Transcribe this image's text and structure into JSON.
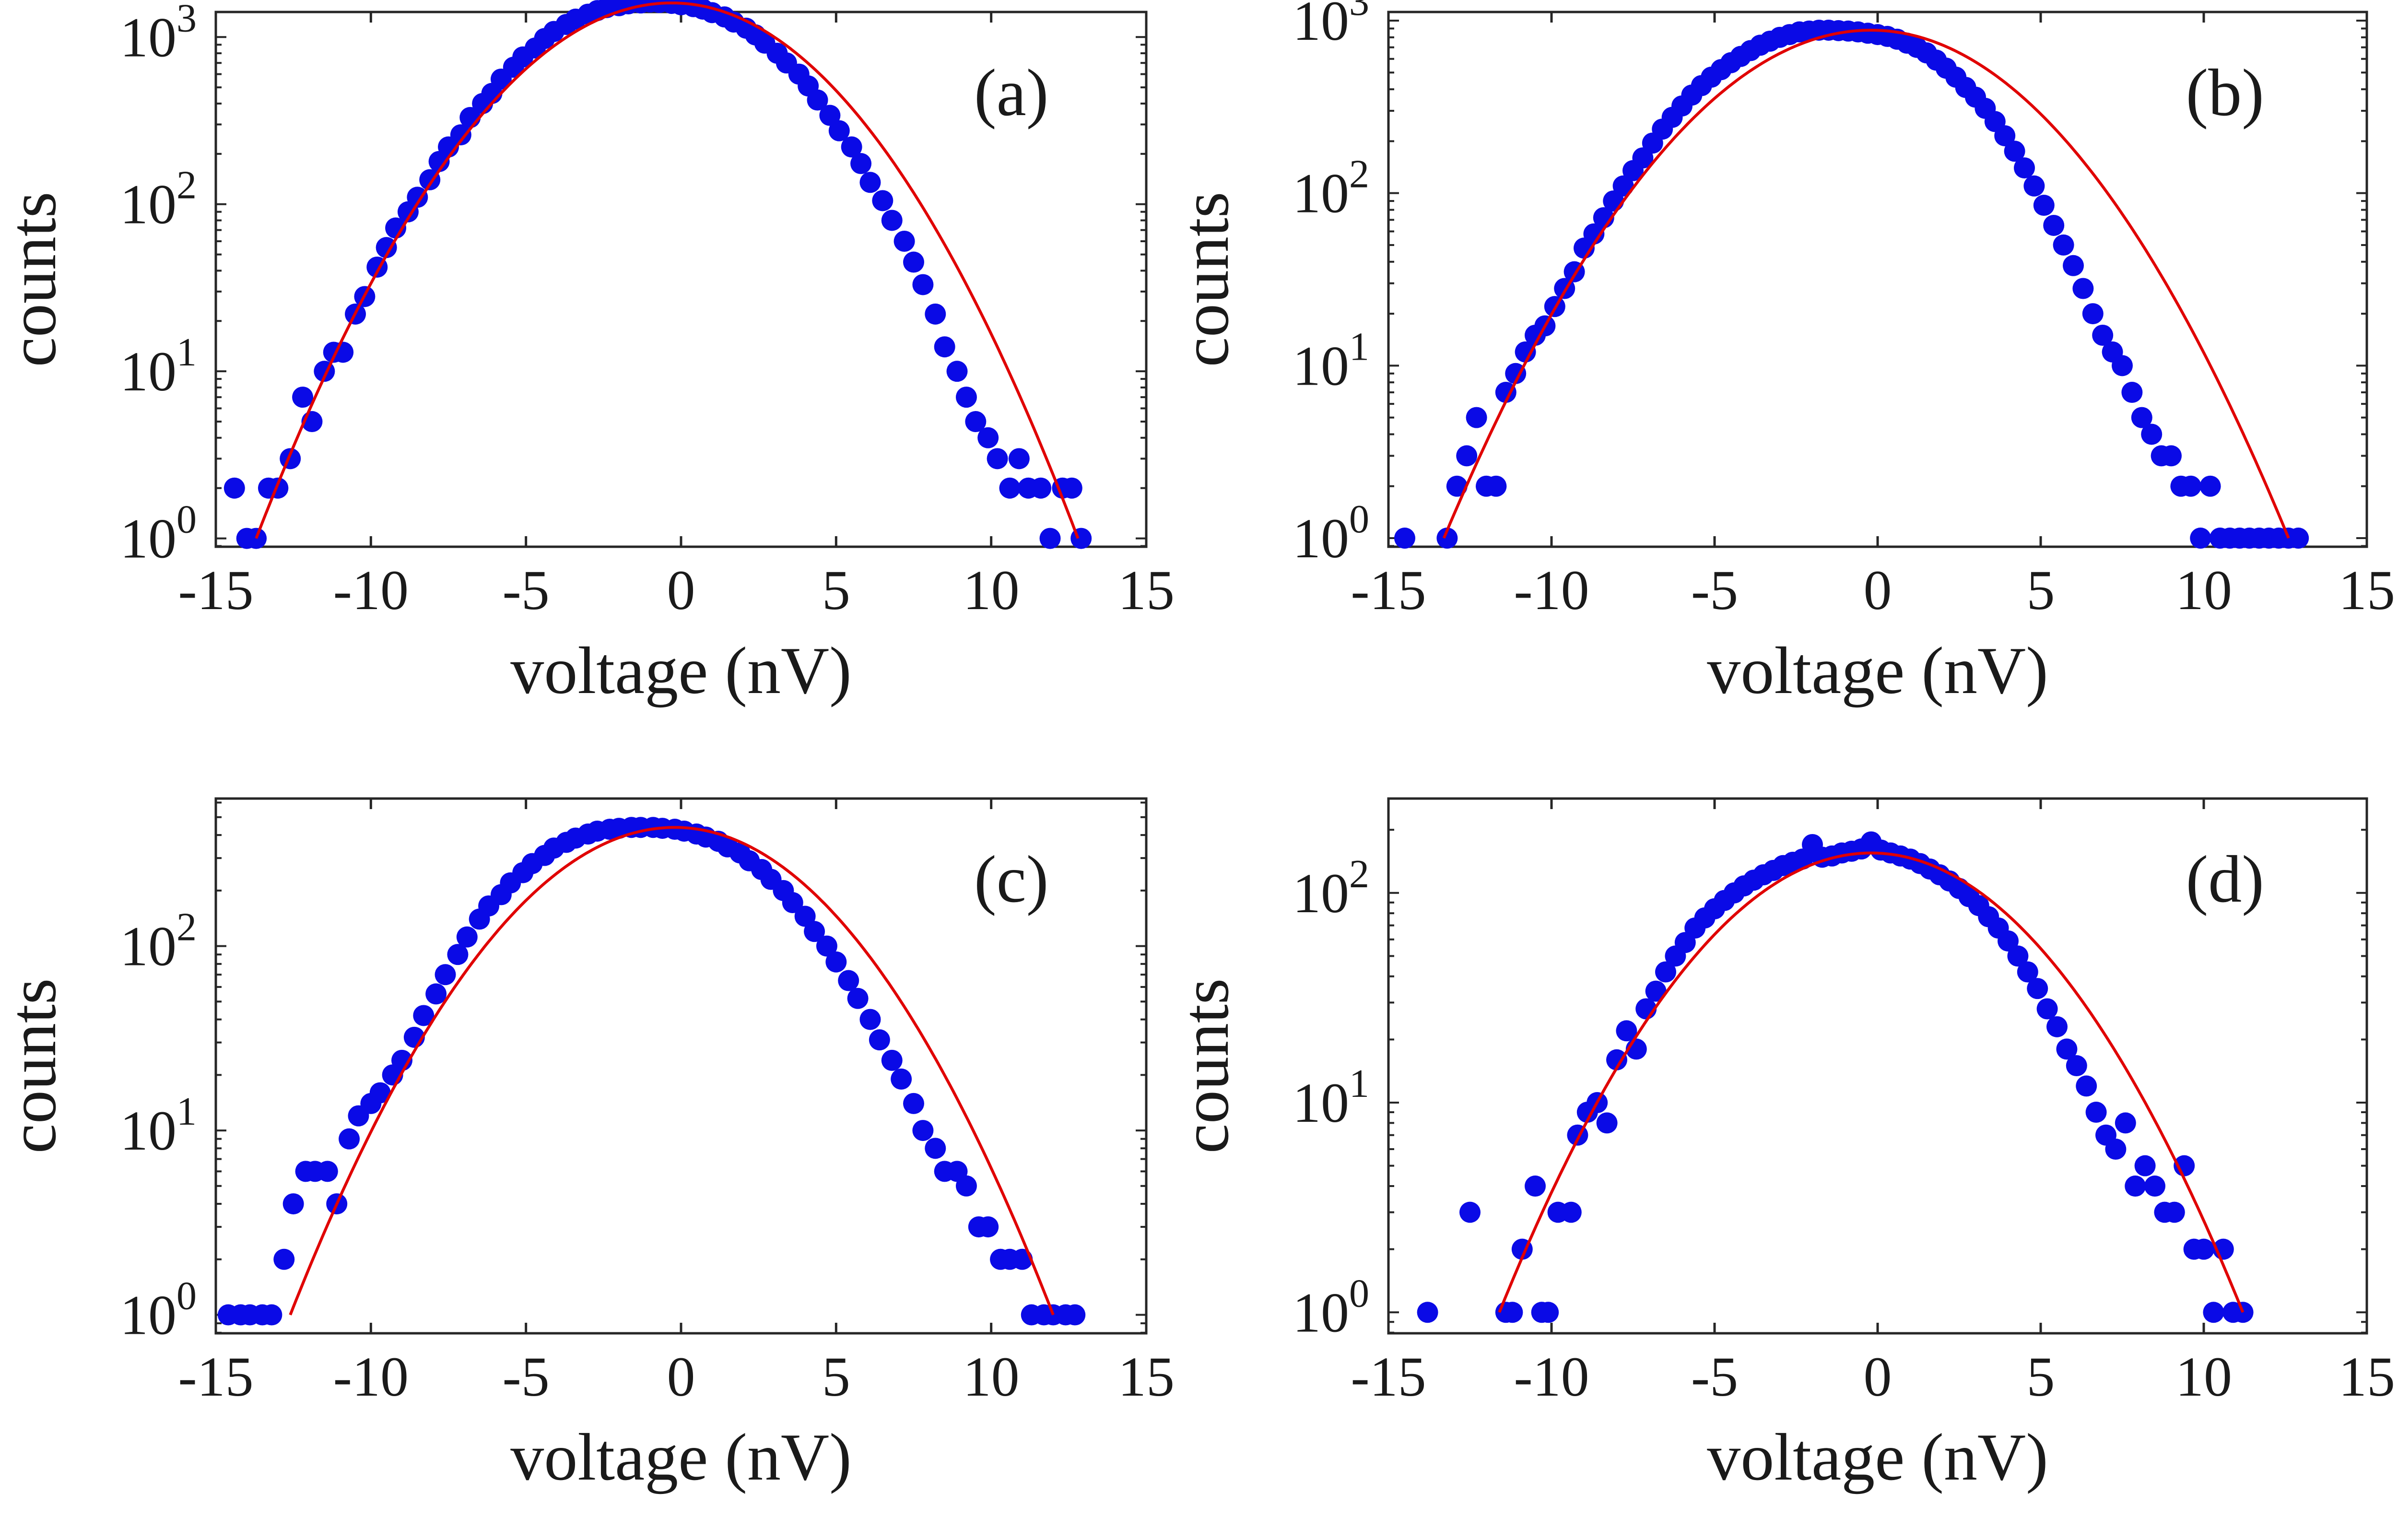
{
  "chart_data": [
    {
      "type": "scatter",
      "panel_label": "(a)",
      "xlabel": "voltage (nV)",
      "ylabel": "counts",
      "xlim": [
        -15,
        15
      ],
      "yscale": "log",
      "ylim_exponent": [
        -0.05,
        3.15
      ],
      "x_ticks": [
        "-15",
        "-10",
        "-5",
        "0",
        "5",
        "10",
        "15"
      ],
      "y_ticks": [
        {
          "base": "10",
          "exp": "0"
        },
        {
          "base": "10",
          "exp": "1"
        },
        {
          "base": "10",
          "exp": "2"
        },
        {
          "base": "10",
          "exp": "3"
        }
      ],
      "grid": false,
      "colors": {
        "points": "#0a0ae6",
        "fit": "#e00000"
      },
      "fit": {
        "center": -0.3,
        "peak": 1600,
        "x_range": [
          -13.7,
          12.8
        ]
      },
      "series": [
        {
          "kind": "points",
          "x": [
            -14.4,
            -14.0,
            -13.7,
            -13.3,
            -13.0,
            -12.6,
            -12.2,
            -11.9,
            -11.5,
            -11.2,
            -10.9,
            -10.5,
            -10.2,
            -9.8,
            -9.5,
            -9.2,
            -8.8,
            -8.5,
            -8.1,
            -7.8,
            -7.5,
            -7.1,
            -6.8,
            -6.4,
            -6.1,
            -5.8,
            -5.4,
            -5.1,
            -4.7,
            -4.4,
            -4.1,
            -3.7,
            -3.4,
            -3.0,
            -2.7,
            -2.4,
            -2.0,
            -1.7,
            -1.3,
            -1.0,
            -0.7,
            -0.3,
            0.0,
            0.4,
            0.7,
            1.0,
            1.4,
            1.7,
            2.1,
            2.4,
            2.7,
            3.1,
            3.4,
            3.8,
            4.1,
            4.4,
            4.8,
            5.1,
            5.5,
            5.8,
            6.1,
            6.5,
            6.8,
            7.2,
            7.5,
            7.8,
            8.2,
            8.5,
            8.9,
            9.2,
            9.5,
            9.9,
            10.2,
            10.6,
            10.9,
            11.2,
            11.6,
            11.9,
            12.3,
            12.6,
            12.9
          ],
          "y": [
            2,
            1,
            1,
            2,
            2,
            3,
            7,
            5,
            10,
            13,
            13,
            22,
            28,
            42,
            55,
            72,
            90,
            110,
            140,
            180,
            220,
            260,
            330,
            400,
            460,
            560,
            660,
            760,
            860,
            980,
            1080,
            1190,
            1280,
            1370,
            1440,
            1500,
            1540,
            1580,
            1600,
            1620,
            1610,
            1590,
            1560,
            1520,
            1470,
            1400,
            1320,
            1230,
            1130,
            1030,
            920,
            800,
            700,
            600,
            510,
            420,
            340,
            275,
            220,
            175,
            135,
            105,
            80,
            60,
            45,
            33,
            22,
            14,
            10,
            7,
            5,
            4,
            3,
            2,
            3,
            2,
            2,
            1,
            2,
            2,
            1
          ]
        }
      ]
    },
    {
      "type": "scatter",
      "panel_label": "(b)",
      "xlabel": "voltage (nV)",
      "ylabel": "counts",
      "xlim": [
        -15,
        15
      ],
      "yscale": "log",
      "ylim_exponent": [
        -0.05,
        3.05
      ],
      "x_ticks": [
        "-15",
        "-10",
        "-5",
        "0",
        "5",
        "10",
        "15"
      ],
      "y_ticks": [
        {
          "base": "10",
          "exp": "0"
        },
        {
          "base": "10",
          "exp": "1"
        },
        {
          "base": "10",
          "exp": "2"
        },
        {
          "base": "10",
          "exp": "3"
        }
      ],
      "grid": false,
      "colors": {
        "points": "#0a0ae6",
        "fit": "#e00000"
      },
      "fit": {
        "center": -0.2,
        "peak": 880,
        "x_range": [
          -13.3,
          12.6
        ]
      },
      "series": [
        {
          "kind": "points",
          "x": [
            -14.5,
            -13.2,
            -12.9,
            -12.6,
            -12.3,
            -12.0,
            -11.7,
            -11.4,
            -11.1,
            -10.8,
            -10.5,
            -10.2,
            -9.9,
            -9.6,
            -9.3,
            -9.0,
            -8.7,
            -8.4,
            -8.1,
            -7.8,
            -7.5,
            -7.2,
            -6.9,
            -6.6,
            -6.3,
            -6.0,
            -5.7,
            -5.4,
            -5.1,
            -4.8,
            -4.5,
            -4.2,
            -3.9,
            -3.6,
            -3.3,
            -3.0,
            -2.7,
            -2.4,
            -2.1,
            -1.8,
            -1.5,
            -1.2,
            -0.9,
            -0.6,
            -0.3,
            0.0,
            0.3,
            0.6,
            0.9,
            1.2,
            1.5,
            1.8,
            2.1,
            2.4,
            2.7,
            3.0,
            3.3,
            3.6,
            3.9,
            4.2,
            4.5,
            4.8,
            5.1,
            5.4,
            5.7,
            6.0,
            6.3,
            6.6,
            6.9,
            7.2,
            7.5,
            7.8,
            8.1,
            8.4,
            8.7,
            9.0,
            9.3,
            9.6,
            9.9,
            10.2,
            10.5,
            10.8,
            11.1,
            11.4,
            11.7,
            12.0,
            12.3,
            12.6,
            12.9
          ],
          "y": [
            1,
            1,
            2,
            3,
            5,
            2,
            2,
            7,
            9,
            12,
            15,
            17,
            22,
            28,
            35,
            48,
            58,
            72,
            90,
            110,
            135,
            160,
            195,
            235,
            275,
            320,
            370,
            420,
            470,
            520,
            570,
            620,
            670,
            720,
            760,
            800,
            830,
            860,
            870,
            880,
            880,
            875,
            870,
            860,
            845,
            830,
            810,
            780,
            740,
            700,
            650,
            590,
            530,
            470,
            410,
            360,
            310,
            260,
            215,
            175,
            140,
            110,
            85,
            65,
            50,
            38,
            28,
            20,
            15,
            12,
            10,
            7,
            5,
            4,
            3,
            3,
            2,
            2,
            1,
            2,
            1,
            1,
            1,
            1,
            1,
            1,
            1,
            1,
            1
          ]
        }
      ]
    },
    {
      "type": "scatter",
      "panel_label": "(c)",
      "xlabel": "voltage (nV)",
      "ylabel": "counts",
      "xlim": [
        -15,
        15
      ],
      "yscale": "log",
      "ylim_exponent": [
        -0.1,
        2.8
      ],
      "x_ticks": [
        "-15",
        "-10",
        "-5",
        "0",
        "5",
        "10",
        "15"
      ],
      "y_ticks": [
        {
          "base": "10",
          "exp": "0"
        },
        {
          "base": "10",
          "exp": "1"
        },
        {
          "base": "10",
          "exp": "2"
        }
      ],
      "grid": false,
      "colors": {
        "points": "#0a0ae6",
        "fit": "#e00000"
      },
      "fit": {
        "center": -0.2,
        "peak": 440,
        "x_range": [
          -12.6,
          12.0
        ]
      },
      "series": [
        {
          "kind": "points",
          "x": [
            -14.6,
            -14.2,
            -13.9,
            -13.5,
            -13.2,
            -12.8,
            -12.5,
            -12.1,
            -11.8,
            -11.4,
            -11.1,
            -10.7,
            -10.4,
            -10.0,
            -9.7,
            -9.3,
            -9.0,
            -8.6,
            -8.3,
            -7.9,
            -7.6,
            -7.2,
            -6.9,
            -6.5,
            -6.2,
            -5.8,
            -5.5,
            -5.1,
            -4.8,
            -4.4,
            -4.1,
            -3.7,
            -3.4,
            -3.0,
            -2.7,
            -2.3,
            -2.0,
            -1.6,
            -1.3,
            -0.9,
            -0.6,
            -0.2,
            0.1,
            0.5,
            0.8,
            1.2,
            1.5,
            1.9,
            2.2,
            2.6,
            2.9,
            3.3,
            3.6,
            4.0,
            4.3,
            4.7,
            5.0,
            5.4,
            5.7,
            6.1,
            6.4,
            6.8,
            7.1,
            7.5,
            7.8,
            8.2,
            8.5,
            8.9,
            9.2,
            9.6,
            9.9,
            10.3,
            10.6,
            11.0,
            11.3,
            11.7,
            12.0,
            12.4,
            12.7
          ],
          "y": [
            1,
            1,
            1,
            1,
            1,
            2,
            4,
            6,
            6,
            6,
            4,
            9,
            12,
            14,
            16,
            20,
            24,
            32,
            42,
            55,
            70,
            90,
            112,
            140,
            165,
            190,
            220,
            250,
            280,
            310,
            340,
            365,
            385,
            405,
            420,
            430,
            435,
            440,
            440,
            440,
            435,
            430,
            420,
            405,
            390,
            370,
            345,
            320,
            290,
            260,
            230,
            200,
            172,
            145,
            120,
            100,
            82,
            65,
            52,
            40,
            31,
            24,
            19,
            14,
            10,
            8,
            6,
            6,
            5,
            3,
            3,
            2,
            2,
            2,
            1,
            1,
            1,
            1,
            1
          ]
        }
      ]
    },
    {
      "type": "scatter",
      "panel_label": "(d)",
      "xlabel": "voltage (nV)",
      "ylabel": "counts",
      "xlim": [
        -15,
        15
      ],
      "yscale": "log",
      "ylim_exponent": [
        -0.1,
        2.45
      ],
      "x_ticks": [
        "-15",
        "-10",
        "-5",
        "0",
        "5",
        "10",
        "15"
      ],
      "y_ticks": [
        {
          "base": "10",
          "exp": "0"
        },
        {
          "base": "10",
          "exp": "1"
        },
        {
          "base": "10",
          "exp": "2"
        }
      ],
      "grid": false,
      "colors": {
        "points": "#0a0ae6",
        "fit": "#e00000"
      },
      "fit": {
        "center": -0.2,
        "peak": 155,
        "x_range": [
          -11.6,
          11.2
        ]
      },
      "series": [
        {
          "kind": "points",
          "x": [
            -13.8,
            -12.5,
            -11.4,
            -11.2,
            -10.9,
            -10.5,
            -10.3,
            -10.1,
            -9.8,
            -9.4,
            -9.2,
            -8.9,
            -8.6,
            -8.3,
            -8.0,
            -7.7,
            -7.4,
            -7.1,
            -6.8,
            -6.5,
            -6.2,
            -5.9,
            -5.6,
            -5.3,
            -5.0,
            -4.7,
            -4.4,
            -4.1,
            -3.8,
            -3.5,
            -3.2,
            -2.9,
            -2.6,
            -2.3,
            -2.0,
            -1.7,
            -1.4,
            -1.1,
            -0.8,
            -0.5,
            -0.2,
            0.1,
            0.4,
            0.7,
            1.0,
            1.3,
            1.6,
            1.9,
            2.2,
            2.5,
            2.8,
            3.1,
            3.4,
            3.7,
            4.0,
            4.3,
            4.6,
            4.9,
            5.2,
            5.5,
            5.8,
            6.1,
            6.4,
            6.7,
            7.0,
            7.3,
            7.6,
            7.9,
            8.2,
            8.5,
            8.8,
            9.1,
            9.4,
            9.7,
            10.0,
            10.3,
            10.6,
            10.9,
            11.2
          ],
          "y": [
            1,
            3,
            1,
            1,
            2,
            4,
            1,
            1,
            3,
            3,
            7,
            9,
            10,
            8,
            16,
            22,
            18,
            28,
            34,
            42,
            50,
            58,
            68,
            76,
            84,
            92,
            100,
            108,
            115,
            122,
            128,
            135,
            140,
            145,
            170,
            148,
            150,
            155,
            158,
            162,
            175,
            160,
            155,
            150,
            145,
            138,
            130,
            122,
            114,
            105,
            96,
            87,
            77,
            68,
            59,
            50,
            42,
            35,
            28,
            23,
            18,
            15,
            12,
            9,
            7,
            6,
            8,
            4,
            5,
            4,
            3,
            3,
            5,
            2,
            2,
            1,
            2,
            1,
            1
          ]
        }
      ]
    }
  ]
}
